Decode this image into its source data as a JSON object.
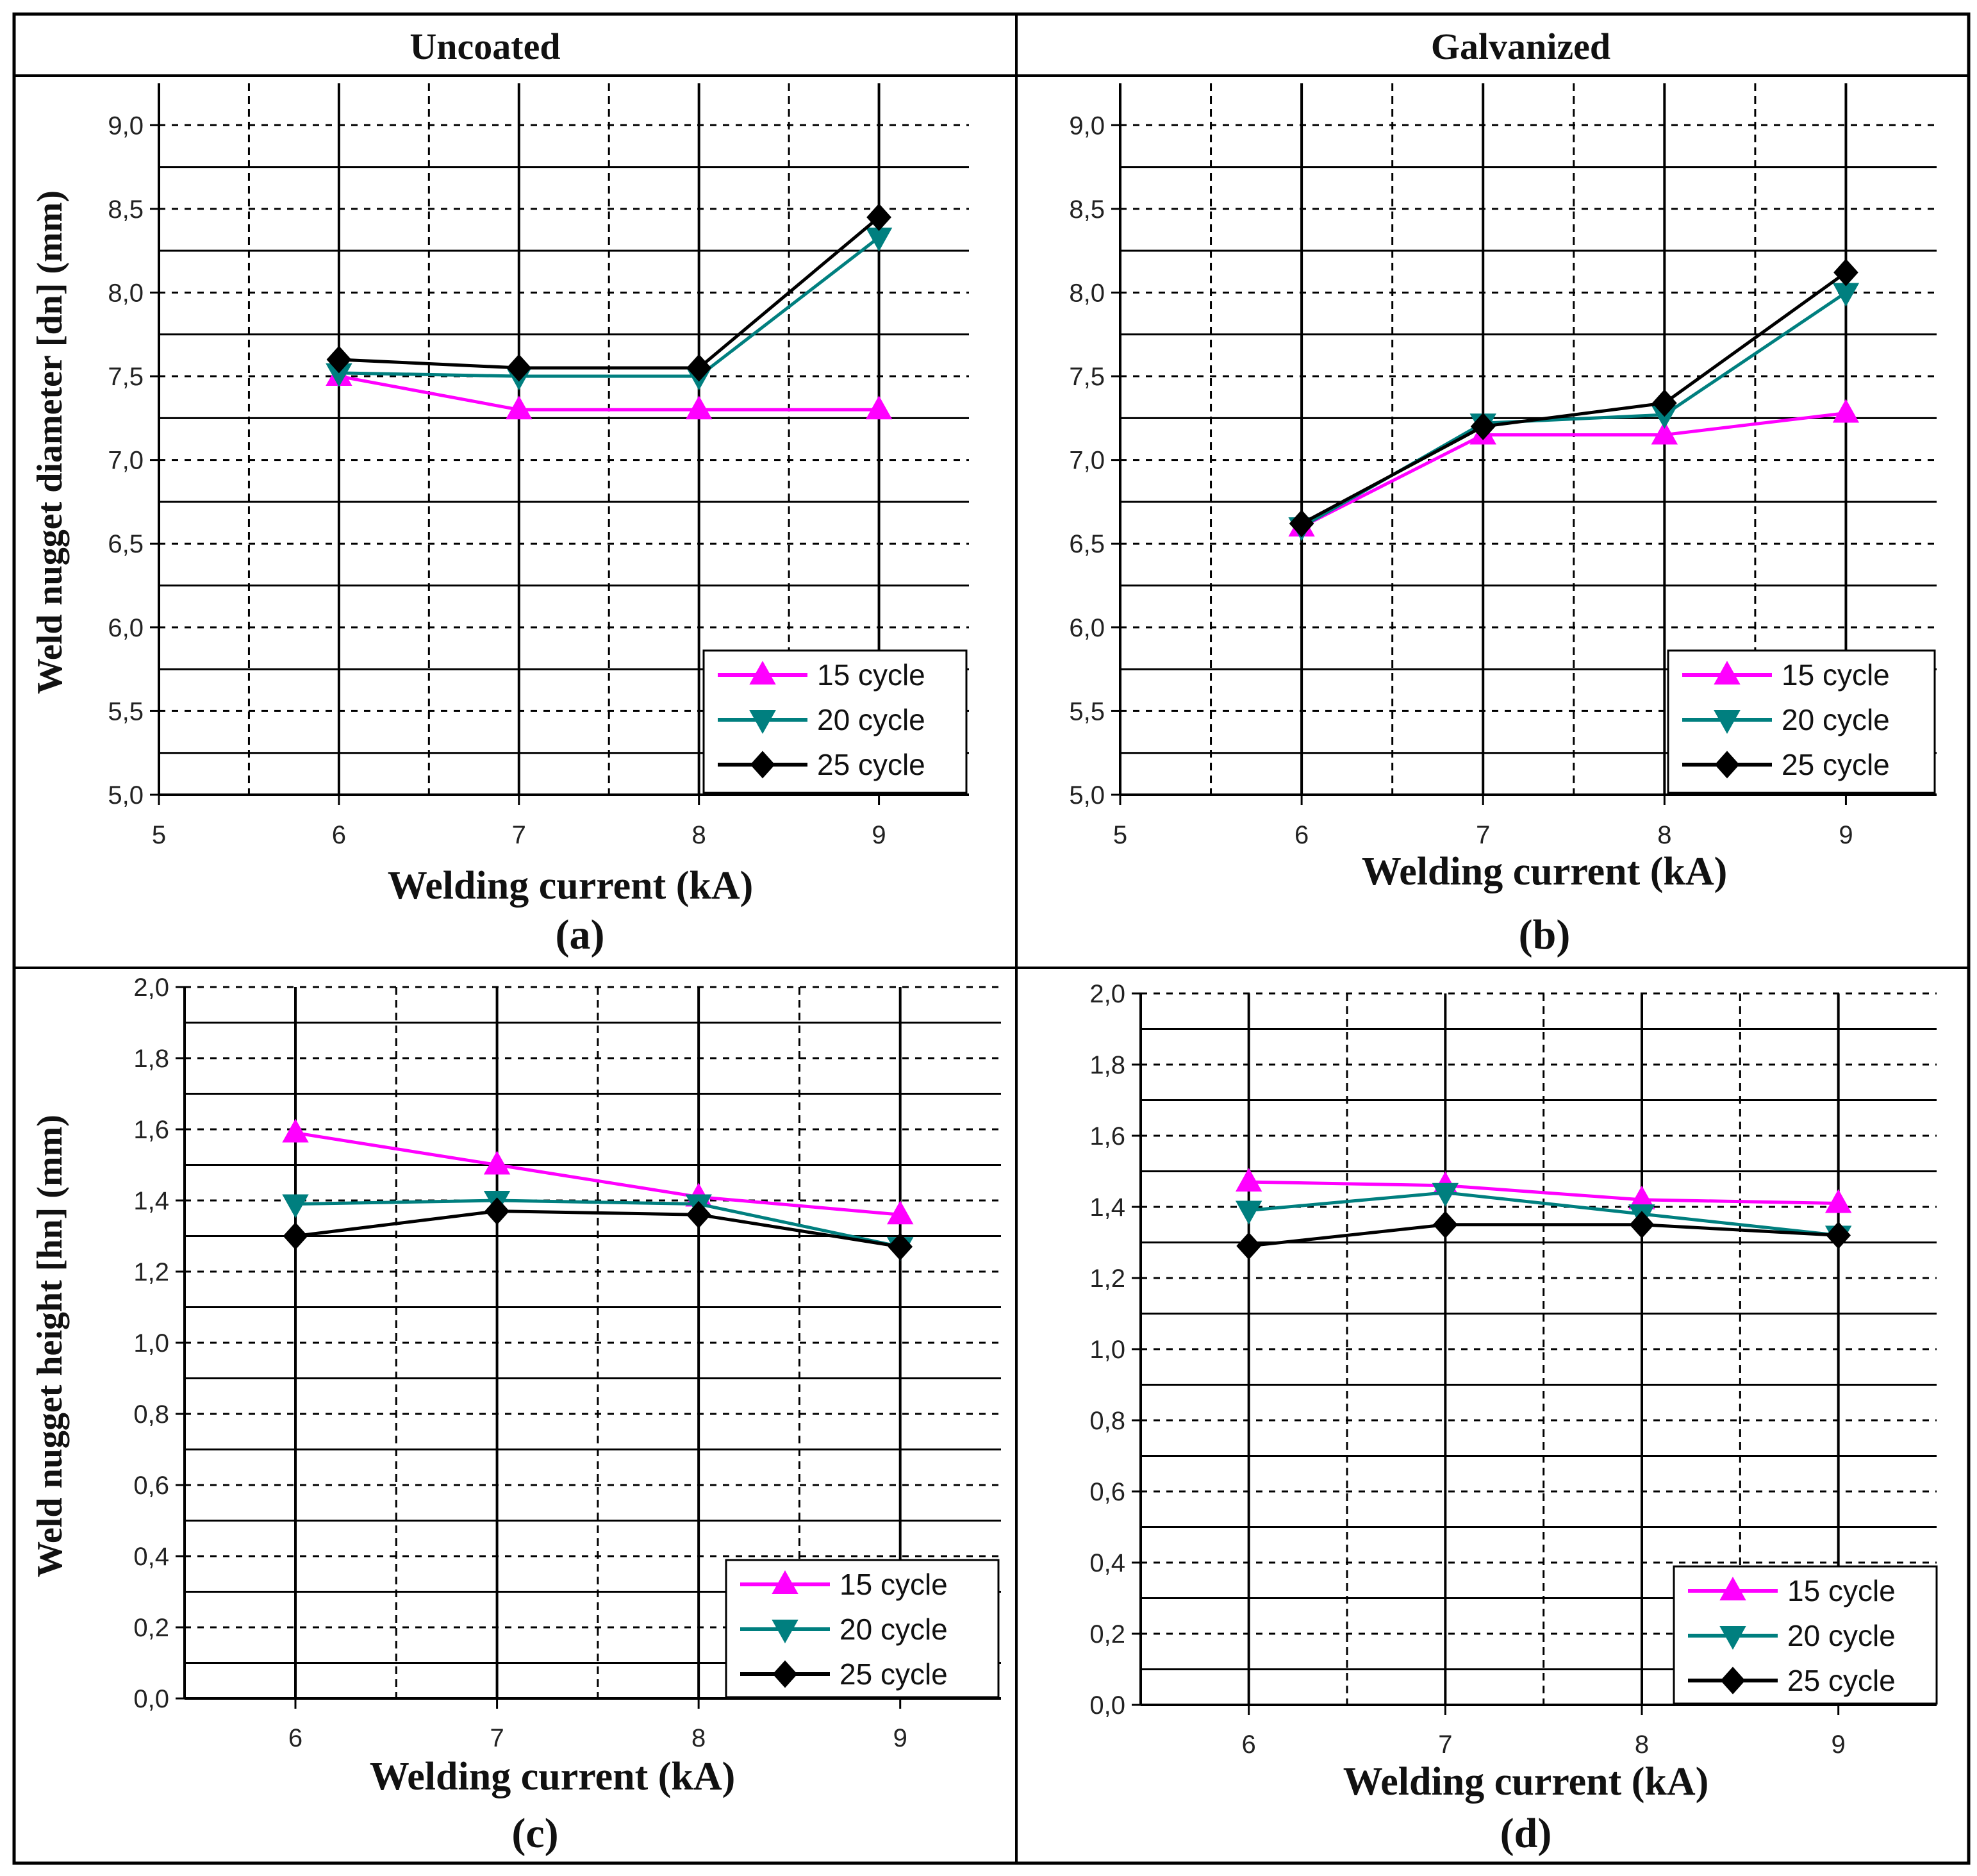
{
  "layout_grid": {
    "headers": [
      "Uncoated",
      "Galvanized"
    ]
  },
  "colors": {
    "15 cycle": "#ff00ff",
    "20 cycle": "#007f7f",
    "25 cycle": "#000000"
  },
  "chart_data": [
    {
      "id": "a",
      "type": "line",
      "panel_label": "(a)",
      "xlabel": "Welding current (kA)",
      "ylabel": "Weld nugget diameter  [dn] (mm)",
      "xlim": [
        5,
        9.5
      ],
      "xticks": [
        5,
        6,
        7,
        8,
        9
      ],
      "xtick_labels": [
        "5",
        "6",
        "7",
        "8",
        "9"
      ],
      "ylim": [
        5.0,
        9.25
      ],
      "yticks": [
        5.0,
        5.5,
        6.0,
        6.5,
        7.0,
        7.5,
        8.0,
        8.5,
        9.0
      ],
      "ytick_labels": [
        "5,0",
        "5,5",
        "6,0",
        "6,5",
        "7,0",
        "7,5",
        "8,0",
        "8,5",
        "9,0"
      ],
      "x": [
        6,
        7,
        8,
        9
      ],
      "series": [
        {
          "name": "15 cycle",
          "marker": "triangle-up",
          "values": [
            7.5,
            7.3,
            7.3,
            7.3
          ]
        },
        {
          "name": "20 cycle",
          "marker": "triangle-down",
          "values": [
            7.52,
            7.5,
            7.5,
            8.33
          ]
        },
        {
          "name": "25 cycle",
          "marker": "diamond",
          "values": [
            7.6,
            7.55,
            7.55,
            8.45
          ]
        }
      ],
      "legend": "bottom-right"
    },
    {
      "id": "b",
      "type": "line",
      "panel_label": "(b)",
      "xlabel": "Welding current (kA)",
      "ylabel": "",
      "xlim": [
        5,
        9.5
      ],
      "xticks": [
        5,
        6,
        7,
        8,
        9
      ],
      "xtick_labels": [
        "5",
        "6",
        "7",
        "8",
        "9"
      ],
      "ylim": [
        5.0,
        9.25
      ],
      "yticks": [
        5.0,
        5.5,
        6.0,
        6.5,
        7.0,
        7.5,
        8.0,
        8.5,
        9.0
      ],
      "ytick_labels": [
        "5,0",
        "5,5",
        "6,0",
        "6,5",
        "7,0",
        "7,5",
        "8,0",
        "8,5",
        "9,0"
      ],
      "x": [
        6,
        7,
        8,
        9
      ],
      "series": [
        {
          "name": "15 cycle",
          "marker": "triangle-up",
          "values": [
            6.6,
            7.15,
            7.15,
            7.28
          ]
        },
        {
          "name": "20 cycle",
          "marker": "triangle-down",
          "values": [
            6.6,
            7.22,
            7.27,
            8.0
          ]
        },
        {
          "name": "25 cycle",
          "marker": "diamond",
          "values": [
            6.62,
            7.2,
            7.34,
            8.12
          ]
        }
      ],
      "legend": "bottom-right"
    },
    {
      "id": "c",
      "type": "line",
      "panel_label": "(c)",
      "xlabel": "Welding current (kA)",
      "ylabel": "Weld nugget height  [hn] (mm)",
      "xlim": [
        5.45,
        9.5
      ],
      "xticks": [
        6,
        7,
        8,
        9
      ],
      "xtick_labels": [
        "6",
        "7",
        "8",
        "9"
      ],
      "ylim": [
        0.0,
        2.0
      ],
      "yticks": [
        0.0,
        0.2,
        0.4,
        0.6,
        0.8,
        1.0,
        1.2,
        1.4,
        1.6,
        1.8,
        2.0
      ],
      "ytick_labels": [
        "0,0",
        "0,2",
        "0,4",
        "0,6",
        "0,8",
        "1,0",
        "1,2",
        "1,4",
        "1,6",
        "1,8",
        "2,0"
      ],
      "x": [
        6,
        7,
        8,
        9
      ],
      "series": [
        {
          "name": "15 cycle",
          "marker": "triangle-up",
          "values": [
            1.59,
            1.5,
            1.41,
            1.36
          ]
        },
        {
          "name": "20 cycle",
          "marker": "triangle-down",
          "values": [
            1.39,
            1.4,
            1.39,
            1.27
          ]
        },
        {
          "name": "25 cycle",
          "marker": "diamond",
          "values": [
            1.3,
            1.37,
            1.36,
            1.27
          ]
        }
      ],
      "legend": "bottom-right"
    },
    {
      "id": "d",
      "type": "line",
      "panel_label": "(d)",
      "xlabel": "Welding current (kA)",
      "ylabel": "",
      "xlim": [
        5.45,
        9.5
      ],
      "xticks": [
        6,
        7,
        8,
        9
      ],
      "xtick_labels": [
        "6",
        "7",
        "8",
        "9"
      ],
      "ylim": [
        0.0,
        2.0
      ],
      "yticks": [
        0.0,
        0.2,
        0.4,
        0.6,
        0.8,
        1.0,
        1.2,
        1.4,
        1.6,
        1.8,
        2.0
      ],
      "ytick_labels": [
        "0,0",
        "0,2",
        "0,4",
        "0,6",
        "0,8",
        "1,0",
        "1,2",
        "1,4",
        "1,6",
        "1,8",
        "2,0"
      ],
      "x": [
        6,
        7,
        8,
        9
      ],
      "series": [
        {
          "name": "15 cycle",
          "marker": "triangle-up",
          "values": [
            1.47,
            1.46,
            1.42,
            1.41
          ]
        },
        {
          "name": "20 cycle",
          "marker": "triangle-down",
          "values": [
            1.39,
            1.44,
            1.38,
            1.32
          ]
        },
        {
          "name": "25 cycle",
          "marker": "diamond",
          "values": [
            1.29,
            1.35,
            1.35,
            1.32
          ]
        }
      ],
      "legend": "bottom-right"
    }
  ]
}
